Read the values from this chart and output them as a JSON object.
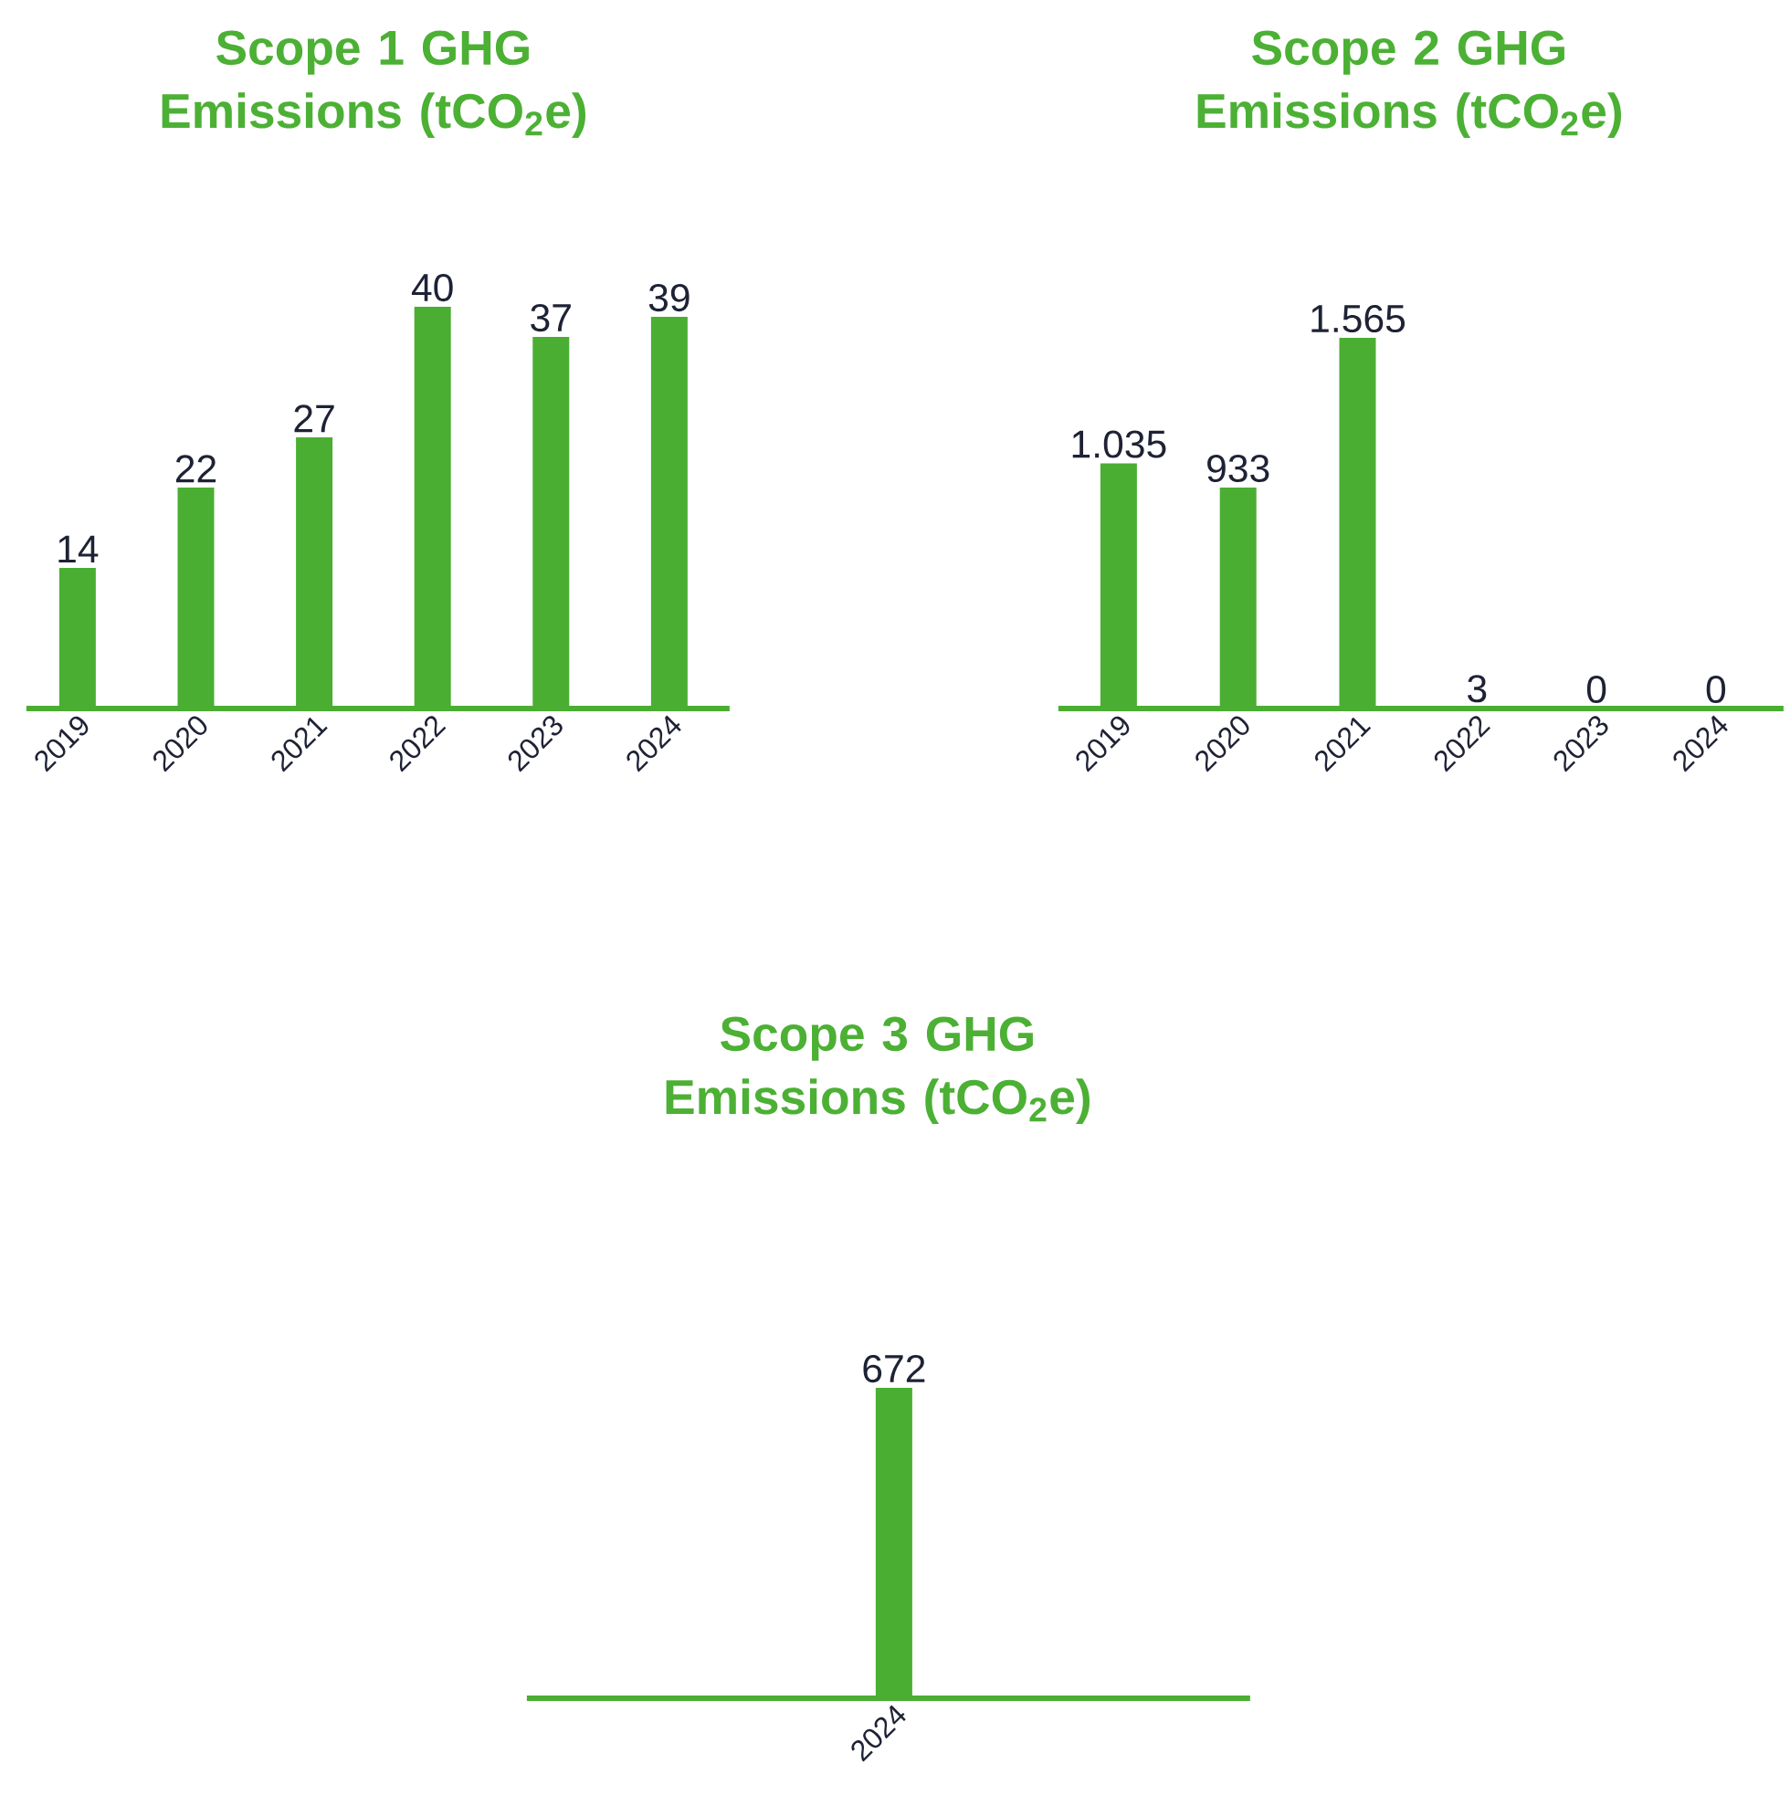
{
  "chart_data": [
    {
      "type": "bar",
      "title": "Scope 1 GHG Emissions (tCO$_{2}$e)",
      "categories": [
        "2019",
        "2020",
        "2021",
        "2022",
        "2023",
        "2024"
      ],
      "values": [
        14,
        22,
        27,
        40,
        37,
        39
      ],
      "color": "#4aae32",
      "data_labels": true
    },
    {
      "type": "bar",
      "title": "Scope 2 GHG Emissions (tCO$_{2}$e)",
      "categories": [
        "2019",
        "2020",
        "2021",
        "2022",
        "2023",
        "2024"
      ],
      "values": [
        1035,
        933,
        1565,
        3,
        0,
        0
      ],
      "value_labels": [
        "1.035",
        "933",
        "1.565",
        "3",
        "0",
        "0"
      ],
      "color": "#4aae32"
    },
    {
      "type": "bar",
      "title": "Scope 3 GHG Emissions (tCO$_{2}$e)",
      "categories": [
        "2024"
      ],
      "values": [
        672
      ],
      "color": "#4aae32",
      "data_labels": true
    }
  ]
}
